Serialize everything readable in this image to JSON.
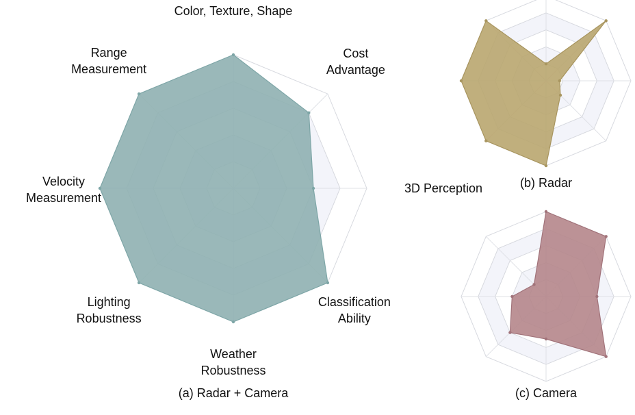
{
  "chart_data": [
    {
      "type": "radar",
      "caption": "(a) Radar + Camera",
      "axes": [
        {
          "label": [
            "Color, Texture, Shape"
          ]
        },
        {
          "label": [
            "Cost",
            "Advantage"
          ]
        },
        {
          "label": [
            "3D Perception"
          ]
        },
        {
          "label": [
            "Classification",
            "Ability"
          ]
        },
        {
          "label": [
            "Weather",
            "Robustness"
          ]
        },
        {
          "label": [
            "Lighting",
            "Robustness"
          ]
        },
        {
          "label": [
            "Velocity",
            "Measurement"
          ]
        },
        {
          "label": [
            "Range",
            "Measurement"
          ]
        }
      ],
      "rlim": [
        0,
        5
      ],
      "rings": 5,
      "values": [
        5,
        4,
        3,
        5,
        5,
        5,
        5,
        5
      ],
      "fill": "#8fb0b1",
      "stroke": "#7ea6a7"
    },
    {
      "type": "radar",
      "caption": "(b) Radar",
      "rlim": [
        0,
        5
      ],
      "rings": 5,
      "values": [
        1,
        5,
        0.8,
        1.2,
        5,
        5,
        5,
        5
      ],
      "fill": "#b9a66f",
      "stroke": "#a8955f"
    },
    {
      "type": "radar",
      "caption": "(c) Camera",
      "rlim": [
        0,
        5
      ],
      "rings": 5,
      "values": [
        5,
        5,
        3,
        5,
        2.5,
        3,
        2,
        1
      ],
      "fill": "#b5868b",
      "stroke": "#a1737a"
    }
  ]
}
